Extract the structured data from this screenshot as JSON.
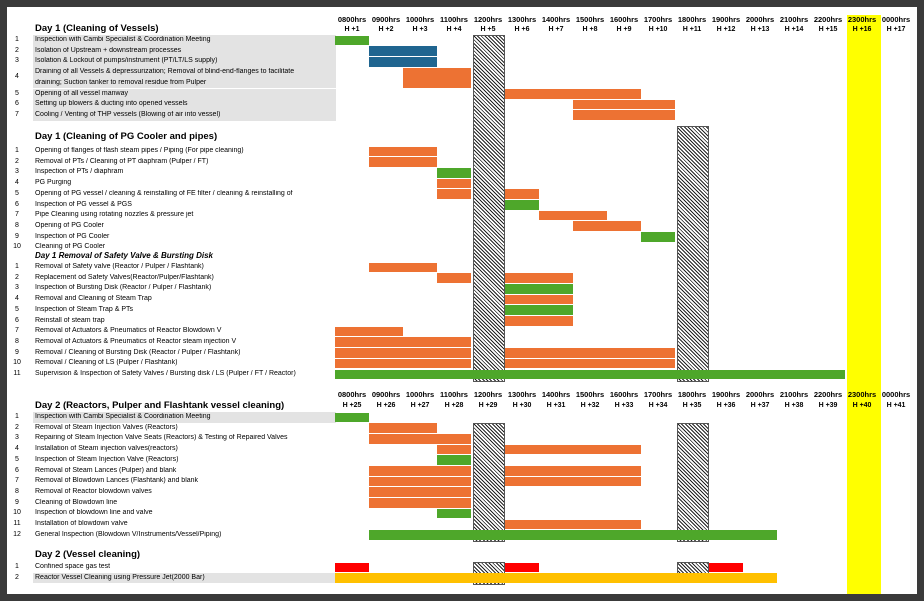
{
  "colors": {
    "orange": "#ed7233",
    "green": "#4ea72a",
    "blue": "#1f6590",
    "red": "#ff0000",
    "gold": "#ffc000",
    "yellow": "#ffff00"
  },
  "timeline1": {
    "times": [
      "0800hrs",
      "0900hrs",
      "1000hrs",
      "1100hrs",
      "1200hrs",
      "1300hrs",
      "1400hrs",
      "1500hrs",
      "1600hrs",
      "1700hrs",
      "1800hrs",
      "1900hrs",
      "2000hrs",
      "2100hrs",
      "2200hrs",
      "2300hrs",
      "0000hrs"
    ],
    "hours": [
      "H +1",
      "H +2",
      "H +3",
      "H +4",
      "H +5",
      "H +6",
      "H +7",
      "H +8",
      "H +9",
      "H +10",
      "H +11",
      "H +12",
      "H +13",
      "H +14",
      "H +15",
      "H +16",
      "H +17"
    ]
  },
  "timeline2": {
    "times": [
      "0800hrs",
      "0900hrs",
      "1000hrs",
      "1100hrs",
      "1200hrs",
      "1300hrs",
      "1400hrs",
      "1500hrs",
      "1600hrs",
      "1700hrs",
      "1800hrs",
      "1900hrs",
      "2000hrs",
      "2100hrs",
      "2200hrs",
      "2300hrs",
      "0000hrs"
    ],
    "hours": [
      "H +25",
      "H +26",
      "H +27",
      "H +28",
      "H +29",
      "H +30",
      "H +31",
      "H +32",
      "H +33",
      "H +34",
      "H +35",
      "H +36",
      "H +37",
      "H +38",
      "H +39",
      "H +40",
      "H +41"
    ]
  },
  "sections": [
    {
      "title": "Day 1 (Cleaning of Vessels)",
      "italic": false,
      "shaded": true,
      "tasks": [
        {
          "num": "1",
          "label": "Inspection with Cambi Specialist & Coordination Meeting",
          "bars": [
            {
              "start": 0,
              "end": 1,
              "color": "green"
            }
          ]
        },
        {
          "num": "2",
          "label": "Isolation of Upstream + downstream processes",
          "bars": [
            {
              "start": 1,
              "end": 3,
              "color": "blue"
            }
          ]
        },
        {
          "num": "3",
          "label": "Isolation & Lockout of pumps/instrument (PT/LT/LS supply)",
          "bars": [
            {
              "start": 1,
              "end": 3,
              "color": "blue"
            }
          ]
        },
        {
          "num": "4",
          "label": "Draining of all Vessels & depressurization; Removal of blind-end-flanges to facilitate",
          "label2": "draining; Suction tanker to removal residue from Pulper",
          "tall": true,
          "bars": [
            {
              "start": 2,
              "end": 4,
              "color": "orange"
            }
          ]
        },
        {
          "num": "5",
          "label": "Opening of all vessel manway",
          "bars": [
            {
              "start": 5,
              "end": 9,
              "color": "orange"
            }
          ]
        },
        {
          "num": "6",
          "label": "Setting up blowers & ducting into opened vessels",
          "bars": [
            {
              "start": 7,
              "end": 10,
              "color": "orange"
            }
          ]
        },
        {
          "num": "7",
          "label": "Cooling / Venting of THP vessels (Blowing of air into vessel)",
          "bars": [
            {
              "start": 7,
              "end": 10,
              "color": "orange"
            }
          ]
        }
      ]
    },
    {
      "title": "Day 1 (Cleaning of PG Cooler and pipes)",
      "italic": false,
      "shaded": false,
      "tasks": [
        {
          "num": "1",
          "label": "Opening of flanges of flash steam pipes / Piping (For pipe cleaning)",
          "bars": [
            {
              "start": 1,
              "end": 3,
              "color": "orange"
            }
          ]
        },
        {
          "num": "2",
          "label": "Removal of PTs / Cleaning of PT diaphram (Pulper / FT)",
          "bars": [
            {
              "start": 1,
              "end": 3,
              "color": "orange"
            }
          ]
        },
        {
          "num": "3",
          "label": "Inspection of PTs / diaphram",
          "bars": [
            {
              "start": 3,
              "end": 4,
              "color": "green"
            }
          ]
        },
        {
          "num": "4",
          "label": "PG Purging",
          "bars": [
            {
              "start": 3,
              "end": 4,
              "color": "orange"
            }
          ]
        },
        {
          "num": "5",
          "label": "Opening of PG vessel / cleaning & reinstalling of FE filter / cleaning & reinstalling of",
          "bars": [
            {
              "start": 3,
              "end": 4,
              "color": "orange"
            },
            {
              "start": 5,
              "end": 6,
              "color": "orange"
            }
          ]
        },
        {
          "num": "6",
          "label": "Inspection of PG vessel & PGS",
          "bars": [
            {
              "start": 5,
              "end": 6,
              "color": "green"
            }
          ]
        },
        {
          "num": "7",
          "label": "Pipe Cleaning using rotating nozzles & pressure jet",
          "bars": [
            {
              "start": 6,
              "end": 8,
              "color": "orange"
            }
          ]
        },
        {
          "num": "8",
          "label": "Opening of PG Cooler",
          "bars": [
            {
              "start": 7,
              "end": 9,
              "color": "orange"
            }
          ]
        },
        {
          "num": "9",
          "label": "Inspection of PG Cooler",
          "bars": [
            {
              "start": 9,
              "end": 10,
              "color": "green"
            }
          ]
        },
        {
          "num": "10",
          "label": "Cleaning of PG Cooler",
          "bars": []
        }
      ]
    },
    {
      "title": "Day 1 Removal of Safety Valve & Bursting Disk",
      "italic": true,
      "shaded": false,
      "tasks": [
        {
          "num": "1",
          "label": "Removal of Safety valve (Reactor / Pulper / Flashtank)",
          "bars": [
            {
              "start": 1,
              "end": 3,
              "color": "orange"
            }
          ]
        },
        {
          "num": "2",
          "label": "Replacement od Safety Valves(Reactor/Pulper/Flashtank)",
          "bars": [
            {
              "start": 3,
              "end": 4,
              "color": "orange"
            },
            {
              "start": 5,
              "end": 7,
              "color": "orange"
            }
          ]
        },
        {
          "num": "3",
          "label": "Inspection of Bursting Disk (Reactor / Pulper / Flashtank)",
          "bars": [
            {
              "start": 5,
              "end": 7,
              "color": "green"
            }
          ]
        },
        {
          "num": "4",
          "label": "Removal and Cleaning of Steam Trap",
          "bars": [
            {
              "start": 5,
              "end": 7,
              "color": "orange"
            }
          ]
        },
        {
          "num": "5",
          "label": "Inspection of Steam Trap & PTs",
          "bars": [
            {
              "start": 5,
              "end": 7,
              "color": "green"
            }
          ]
        },
        {
          "num": "6",
          "label": "Reinstall of steam trap",
          "bars": [
            {
              "start": 5,
              "end": 7,
              "color": "orange"
            }
          ]
        },
        {
          "num": "7",
          "label": "Removal of Actuators & Pneumatics of Reactor Blowdown V",
          "bars": [
            {
              "start": 0,
              "end": 2,
              "color": "orange"
            }
          ]
        },
        {
          "num": "8",
          "label": "Removal of Actuators & Pneumatics of Reactor steam injection V",
          "bars": [
            {
              "start": 0,
              "end": 4,
              "color": "orange"
            }
          ]
        },
        {
          "num": "9",
          "label": "Removal / Cleaning of Bursting Disk (Reactor / Pulper / Flashtank)",
          "bars": [
            {
              "start": 0,
              "end": 4,
              "color": "orange"
            },
            {
              "start": 5,
              "end": 10,
              "color": "orange"
            }
          ]
        },
        {
          "num": "10",
          "label": "Removal / Cleaning of LS (Pulper / Flashtank)",
          "bars": [
            {
              "start": 0,
              "end": 4,
              "color": "orange"
            },
            {
              "start": 5,
              "end": 10,
              "color": "orange"
            }
          ]
        },
        {
          "num": "11",
          "label": "Supervision & Inspection of Safety Valves / Bursting disk / LS (Pulper / FT / Reactor)",
          "bars": [
            {
              "start": 0,
              "end": 15,
              "color": "green"
            }
          ]
        }
      ]
    },
    {
      "title": "Day 2 (Reactors, Pulper and Flashtank vessel cleaning)",
      "italic": false,
      "shaded": false,
      "tasks": [
        {
          "num": "1",
          "label": "Inspection with Cambi Specialist & Coordination Meeting",
          "shaded": true,
          "bars": [
            {
              "start": 0,
              "end": 1,
              "color": "green"
            }
          ]
        },
        {
          "num": "2",
          "label": "Removal of Steam Injection Valves (Reactors)",
          "bars": [
            {
              "start": 1,
              "end": 3,
              "color": "orange"
            }
          ]
        },
        {
          "num": "3",
          "label": "Repairing of Steam Injection Valve Seats (Reactors) & Testing of Repaired Valves",
          "bars": [
            {
              "start": 1,
              "end": 4,
              "color": "orange"
            }
          ]
        },
        {
          "num": "4",
          "label": "Installation of Steam injection valves(reactors)",
          "bars": [
            {
              "start": 3,
              "end": 4,
              "color": "orange"
            },
            {
              "start": 5,
              "end": 9,
              "color": "orange"
            }
          ]
        },
        {
          "num": "5",
          "label": "Inspection of Steam Injection Valve (Reactors)",
          "bars": [
            {
              "start": 3,
              "end": 4,
              "color": "green"
            }
          ]
        },
        {
          "num": "6",
          "label": "Removal of Steam Lances (Pulper) and blank",
          "bars": [
            {
              "start": 1,
              "end": 4,
              "color": "orange"
            },
            {
              "start": 5,
              "end": 9,
              "color": "orange"
            }
          ]
        },
        {
          "num": "7",
          "label": "Removal of Blowdown Lances (Flashtank) and blank",
          "bars": [
            {
              "start": 1,
              "end": 4,
              "color": "orange"
            },
            {
              "start": 5,
              "end": 9,
              "color": "orange"
            }
          ]
        },
        {
          "num": "8",
          "label": "Removal of Reactor blowdown valves",
          "bars": [
            {
              "start": 1,
              "end": 4,
              "color": "orange"
            }
          ]
        },
        {
          "num": "9",
          "label": "Cleaning of Blowdown line",
          "bars": [
            {
              "start": 1,
              "end": 4,
              "color": "orange"
            }
          ]
        },
        {
          "num": "10",
          "label": "Inspection of blowdown line and valve",
          "bars": [
            {
              "start": 3,
              "end": 4,
              "color": "green"
            }
          ]
        },
        {
          "num": "11",
          "label": "Installation of blowdown valve",
          "bars": [
            {
              "start": 5,
              "end": 9,
              "color": "orange"
            }
          ]
        },
        {
          "num": "12",
          "label": "General Inspection (Blowdown V/Instruments/Vessel/Piping)",
          "bars": [
            {
              "start": 1,
              "end": 13,
              "color": "green"
            }
          ]
        }
      ]
    },
    {
      "title": "Day 2 (Vessel cleaning)",
      "italic": false,
      "shaded": false,
      "tasks": [
        {
          "num": "1",
          "label": "Confined space gas test",
          "bars": [
            {
              "start": 0,
              "end": 1,
              "color": "red"
            },
            {
              "start": 5,
              "end": 6,
              "color": "red"
            },
            {
              "start": 11,
              "end": 12,
              "color": "red"
            }
          ]
        },
        {
          "num": "2",
          "label": "Reactor Vessel Cleaning using Pressure Jet(2000 Bar)",
          "shaded": true,
          "bars": [
            {
              "start": 0,
              "end": 13,
              "color": "gold"
            }
          ]
        }
      ]
    }
  ]
}
